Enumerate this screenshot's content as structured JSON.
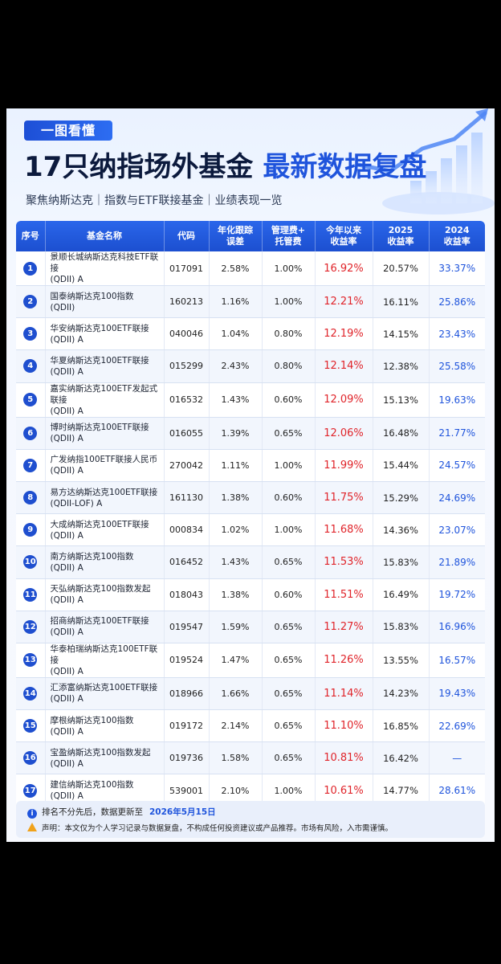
{
  "header": {
    "tag": "一图看懂",
    "title_part1": "17只纳指场外基金",
    "title_part2": "最新数据复盘",
    "subtitle": "聚焦纳斯达克｜指数与ETF联接基金｜业绩表现一览"
  },
  "table": {
    "columns": [
      {
        "line1": "序号",
        "line2": ""
      },
      {
        "line1": "基金名称",
        "line2": ""
      },
      {
        "line1": "代码",
        "line2": ""
      },
      {
        "line1": "年化跟踪",
        "line2": "误差"
      },
      {
        "line1": "管理费+",
        "line2": "托管费"
      },
      {
        "line1": "今年以来",
        "line2": "收益率"
      },
      {
        "line1": "2025",
        "line2": "收益率"
      },
      {
        "line1": "2024",
        "line2": "收益率"
      }
    ],
    "rows": [
      {
        "rank": "1",
        "name1": "景顺长城纳斯达克科技ETF联接",
        "name2": "(QDII) A",
        "code": "017091",
        "tracking": "2.58%",
        "fee": "1.00%",
        "ytd": "16.92%",
        "y2025": "20.57%",
        "y2024": "33.37%"
      },
      {
        "rank": "2",
        "name1": "国泰纳斯达克100指数",
        "name2": "(QDII)",
        "code": "160213",
        "tracking": "1.16%",
        "fee": "1.00%",
        "ytd": "12.21%",
        "y2025": "16.11%",
        "y2024": "25.86%"
      },
      {
        "rank": "3",
        "name1": "华安纳斯达克100ETF联接",
        "name2": "(QDII) A",
        "code": "040046",
        "tracking": "1.04%",
        "fee": "0.80%",
        "ytd": "12.19%",
        "y2025": "14.15%",
        "y2024": "23.43%"
      },
      {
        "rank": "4",
        "name1": "华夏纳斯达克100ETF联接",
        "name2": "(QDII) A",
        "code": "015299",
        "tracking": "2.43%",
        "fee": "0.80%",
        "ytd": "12.14%",
        "y2025": "12.38%",
        "y2024": "25.58%"
      },
      {
        "rank": "5",
        "name1": "嘉实纳斯达克100ETF发起式联接",
        "name2": "(QDII) A",
        "code": "016532",
        "tracking": "1.43%",
        "fee": "0.60%",
        "ytd": "12.09%",
        "y2025": "15.13%",
        "y2024": "19.63%"
      },
      {
        "rank": "6",
        "name1": "博时纳斯达克100ETF联接",
        "name2": "(QDII) A",
        "code": "016055",
        "tracking": "1.39%",
        "fee": "0.65%",
        "ytd": "12.06%",
        "y2025": "16.48%",
        "y2024": "21.77%"
      },
      {
        "rank": "7",
        "name1": "广发纳指100ETF联接人民币",
        "name2": "(QDII) A",
        "code": "270042",
        "tracking": "1.11%",
        "fee": "1.00%",
        "ytd": "11.99%",
        "y2025": "15.44%",
        "y2024": "24.57%"
      },
      {
        "rank": "8",
        "name1": "易方达纳斯达克100ETF联接",
        "name2": "(QDII-LOF) A",
        "code": "161130",
        "tracking": "1.38%",
        "fee": "0.60%",
        "ytd": "11.75%",
        "y2025": "15.29%",
        "y2024": "24.69%"
      },
      {
        "rank": "9",
        "name1": "大成纳斯达克100ETF联接",
        "name2": "(QDII) A",
        "code": "000834",
        "tracking": "1.02%",
        "fee": "1.00%",
        "ytd": "11.68%",
        "y2025": "14.36%",
        "y2024": "23.07%"
      },
      {
        "rank": "10",
        "name1": "南方纳斯达克100指数",
        "name2": "(QDII) A",
        "code": "016452",
        "tracking": "1.43%",
        "fee": "0.65%",
        "ytd": "11.53%",
        "y2025": "15.83%",
        "y2024": "21.89%"
      },
      {
        "rank": "11",
        "name1": "天弘纳斯达克100指数发起",
        "name2": "(QDII) A",
        "code": "018043",
        "tracking": "1.38%",
        "fee": "0.60%",
        "ytd": "11.51%",
        "y2025": "16.49%",
        "y2024": "19.72%"
      },
      {
        "rank": "12",
        "name1": "招商纳斯达克100ETF联接",
        "name2": "(QDII) A",
        "code": "019547",
        "tracking": "1.59%",
        "fee": "0.65%",
        "ytd": "11.27%",
        "y2025": "15.83%",
        "y2024": "16.96%"
      },
      {
        "rank": "13",
        "name1": "华泰柏瑞纳斯达克100ETF联接",
        "name2": "(QDII) A",
        "code": "019524",
        "tracking": "1.47%",
        "fee": "0.65%",
        "ytd": "11.26%",
        "y2025": "13.55%",
        "y2024": "16.57%"
      },
      {
        "rank": "14",
        "name1": "汇添富纳斯达克100ETF联接",
        "name2": "(QDII) A",
        "code": "018966",
        "tracking": "1.66%",
        "fee": "0.65%",
        "ytd": "11.14%",
        "y2025": "14.23%",
        "y2024": "19.43%"
      },
      {
        "rank": "15",
        "name1": "摩根纳斯达克100指数",
        "name2": "(QDII) A",
        "code": "019172",
        "tracking": "2.14%",
        "fee": "0.65%",
        "ytd": "11.10%",
        "y2025": "16.85%",
        "y2024": "22.69%"
      },
      {
        "rank": "16",
        "name1": "宝盈纳斯达克100指数发起",
        "name2": "(QDII) A",
        "code": "019736",
        "tracking": "1.58%",
        "fee": "0.65%",
        "ytd": "10.81%",
        "y2025": "16.42%",
        "y2024": "—"
      },
      {
        "rank": "17",
        "name1": "建信纳斯达克100指数",
        "name2": "(QDII) A",
        "code": "539001",
        "tracking": "2.10%",
        "fee": "1.00%",
        "ytd": "10.61%",
        "y2025": "14.77%",
        "y2024": "28.61%"
      }
    ]
  },
  "footer": {
    "info_icon": "info-icon",
    "note": "排名不分先后，数据更新至",
    "date": "2026年5月15日",
    "warning_icon": "warning-icon",
    "disclaimer": "声明：本文仅为个人学习记录与数据复盘，不构成任何投资建议或产品推荐。市场有风险，入市需谨慎。"
  },
  "colors": {
    "brand_blue": "#1f54dc",
    "positive_red": "#e0242a",
    "title_dark": "#0c1a3d"
  }
}
